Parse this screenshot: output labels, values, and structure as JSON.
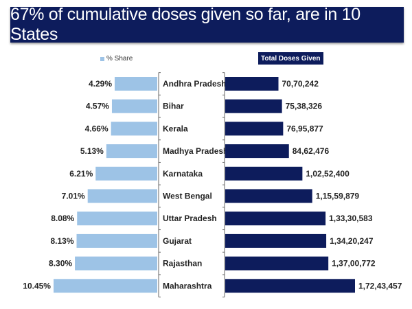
{
  "title": "67% of cumulative doses given so far, are in 10 States",
  "chart_data": {
    "type": "bar",
    "orientation": "horizontal-butterfly",
    "categories": [
      "Andhra Pradesh",
      "Bihar",
      "Kerala",
      "Madhya Pradesh",
      "Karnataka",
      "West Bengal",
      "Uttar Pradesh",
      "Gujarat",
      "Rajasthan",
      "Maharashtra"
    ],
    "series": [
      {
        "name": "% Share",
        "color": "#9dc3e6",
        "side": "left",
        "values": [
          4.29,
          4.57,
          4.66,
          5.13,
          6.21,
          7.01,
          8.08,
          8.13,
          8.3,
          10.45
        ],
        "labels": [
          "4.29%",
          "4.57%",
          "4.66%",
          "5.13%",
          "6.21%",
          "7.01%",
          "8.08%",
          "8.13%",
          "8.30%",
          "10.45%"
        ]
      },
      {
        "name": "Total Doses Given",
        "color": "#0d1c5c",
        "side": "right",
        "values": [
          7070242,
          7538326,
          7695877,
          8462476,
          10252400,
          11559879,
          13330583,
          13420247,
          13700772,
          17243457
        ],
        "labels": [
          "70,70,242",
          "75,38,326",
          "76,95,877",
          "84,62,476",
          "1,02,52,400",
          "1,15,59,879",
          "1,33,30,583",
          "1,34,20,247",
          "1,37,00,772",
          "1,72,43,457"
        ]
      }
    ],
    "legend": {
      "share": "% Share",
      "total": "Total Doses Given"
    },
    "grid": false
  }
}
